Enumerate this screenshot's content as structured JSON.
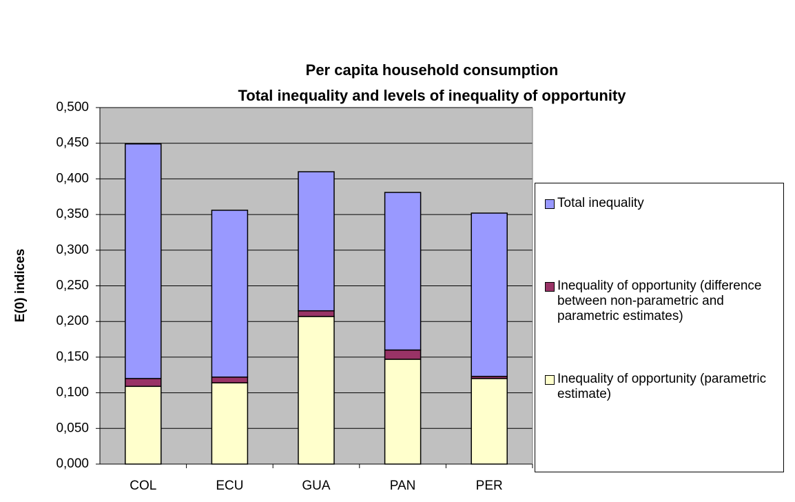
{
  "chart_data": {
    "type": "stacked-bar",
    "title": "Per capita household consumption",
    "subtitle": "Total inequality and levels of inequality of opportunity",
    "y_label": "E(0) indices",
    "categories": [
      "COL",
      "ECU",
      "GUA",
      "PAN",
      "PER"
    ],
    "series": [
      {
        "name": "Inequality of opportunity (parametric estimate)",
        "color": "#ffffcc",
        "values": [
          0.109,
          0.114,
          0.207,
          0.147,
          0.12
        ]
      },
      {
        "name": "Inequality of opportunity (difference between non-parametric and parametric estimates)",
        "color": "#993366",
        "values": [
          0.011,
          0.008,
          0.008,
          0.013,
          0.003
        ]
      },
      {
        "name": "Total inequality",
        "color": "#9999ff",
        "values": [
          0.329,
          0.234,
          0.195,
          0.221,
          0.229
        ]
      }
    ],
    "ylim": [
      0,
      0.5
    ],
    "yticks": [
      {
        "value": 0,
        "label": "0,000"
      },
      {
        "value": 0.05,
        "label": "0,050"
      },
      {
        "value": 0.1,
        "label": "0,100"
      },
      {
        "value": 0.15,
        "label": "0,150"
      },
      {
        "value": 0.2,
        "label": "0,200"
      },
      {
        "value": 0.25,
        "label": "0,250"
      },
      {
        "value": 0.3,
        "label": "0,300"
      },
      {
        "value": 0.35,
        "label": "0,350"
      },
      {
        "value": 0.4,
        "label": "0,400"
      },
      {
        "value": 0.45,
        "label": "0,450"
      },
      {
        "value": 0.5,
        "label": "0,500"
      }
    ],
    "grid": true,
    "plot_background": "#c0c0c0"
  }
}
